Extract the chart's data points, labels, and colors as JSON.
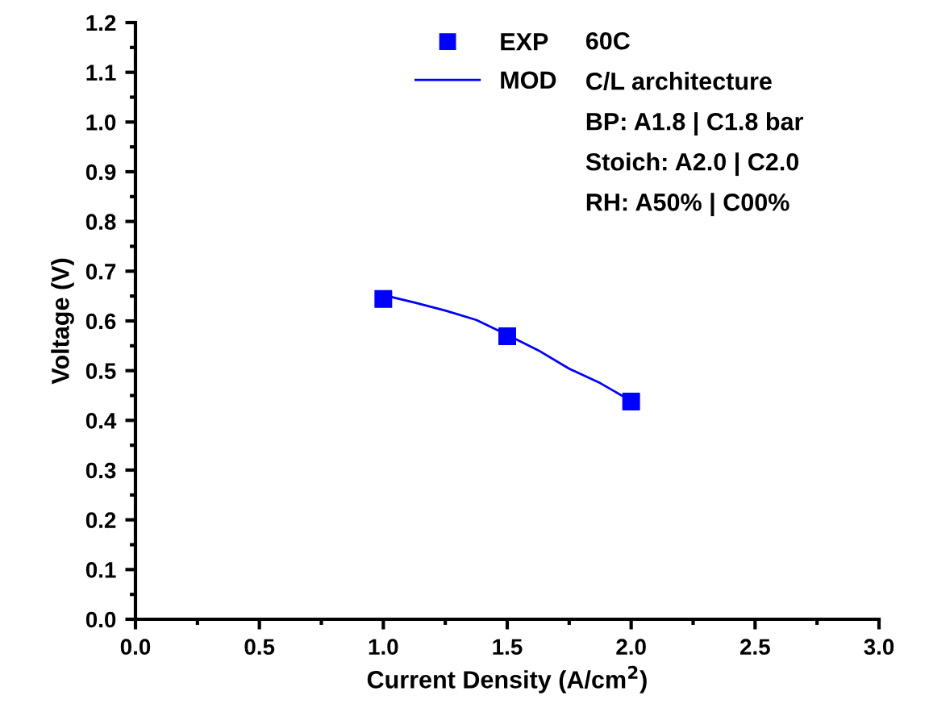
{
  "chart_data": {
    "type": "line",
    "xlabel": "Current Density (A/cm$^{2}$)",
    "ylabel": "Voltage (V)",
    "series": [
      {
        "name": "EXP",
        "type": "scatter",
        "color": "#0000ff",
        "marker": "square",
        "x": [
          1.0,
          1.5,
          2.0
        ],
        "values": [
          0.644,
          0.569,
          0.438
        ]
      },
      {
        "name": "MOD",
        "color": "#0000ff",
        "marker": "none",
        "line_style": "solid",
        "x": [
          1.0,
          1.125,
          1.25,
          1.375,
          1.5,
          1.625,
          1.75,
          1.875,
          2.0
        ],
        "values": [
          0.652,
          0.637,
          0.621,
          0.602,
          0.572,
          0.541,
          0.504,
          0.475,
          0.439
        ]
      }
    ],
    "annotations": [
      "60C",
      "C/L architecture",
      "BP: A1.8 | C1.8 bar",
      "Stoich: A2.0 | C2.0",
      "RH: A50% | C00%"
    ],
    "xlim": [
      0,
      3
    ],
    "xticks": [
      {
        "value": 0,
        "label": "0.0"
      },
      0.5,
      {
        "value": 1,
        "label": "1.0"
      },
      1.5,
      {
        "value": 2,
        "label": "2.0"
      },
      2.5,
      {
        "value": 3,
        "label": "3.0"
      }
    ],
    "ylim": [
      0,
      1.2
    ],
    "yticks": [
      {
        "value": 0,
        "label": "0.0"
      },
      0.1,
      0.2,
      0.3,
      0.4,
      0.5,
      0.6,
      0.7,
      0.8,
      0.9,
      {
        "value": 1,
        "label": "1.0"
      },
      1.1,
      1.2
    ],
    "legend": "top right",
    "grid": false
  }
}
